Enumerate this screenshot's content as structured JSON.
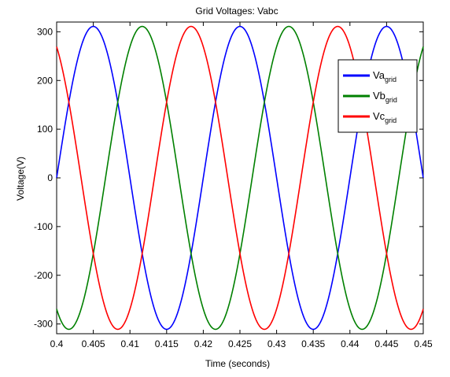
{
  "chart_data": {
    "type": "line",
    "title": "Grid Voltages: Vabc",
    "xlabel": "Time (seconds)",
    "ylabel": "Voltage(V)",
    "xlim": [
      0.4,
      0.45
    ],
    "ylim": [
      -320,
      320
    ],
    "xticks": [
      0.4,
      0.405,
      0.41,
      0.415,
      0.42,
      0.425,
      0.43,
      0.435,
      0.44,
      0.445,
      0.45
    ],
    "xtick_labels": [
      "0.4",
      "0.405",
      "0.41",
      "0.415",
      "0.42",
      "0.425",
      "0.43",
      "0.435",
      "0.44",
      "0.445",
      "0.45"
    ],
    "yticks": [
      -300,
      -200,
      -100,
      0,
      100,
      200,
      300
    ],
    "ytick_labels": [
      "-300",
      "-200",
      "-100",
      "0",
      "100",
      "200",
      "300"
    ],
    "grid": false,
    "legend_position": "top-right",
    "amplitude": 311,
    "frequency_hz": 50,
    "series": [
      {
        "name": "Va",
        "subscript": "grid",
        "color": "#0000ff",
        "phase_deg": 0
      },
      {
        "name": "Vb",
        "subscript": "grid",
        "color": "#008000",
        "phase_deg": -120
      },
      {
        "name": "Vc",
        "subscript": "grid",
        "color": "#ff0000",
        "phase_deg": 120
      }
    ]
  }
}
